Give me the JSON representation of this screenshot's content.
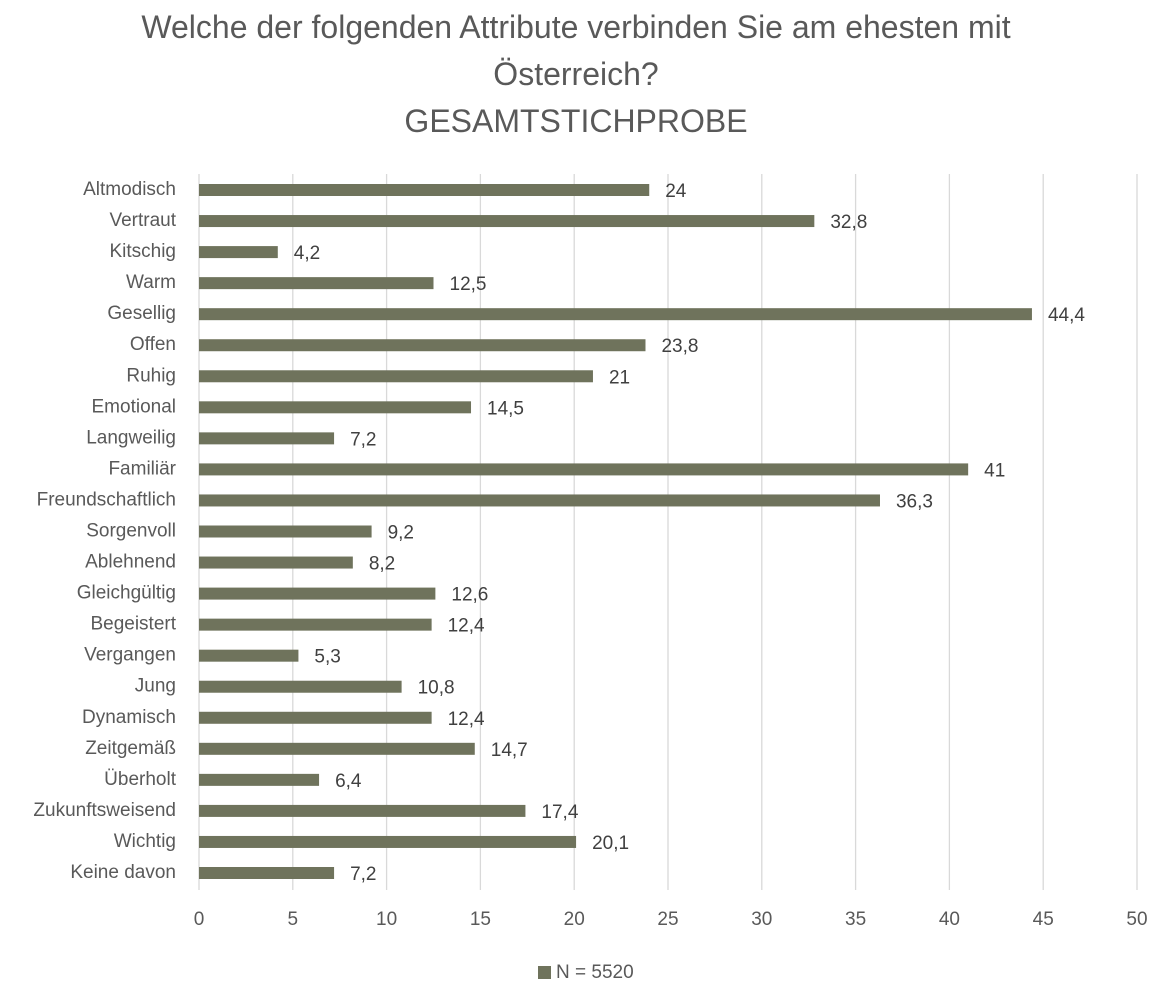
{
  "chart_data": {
    "type": "barh",
    "title": "Welche der folgenden Attribute verbinden Sie am ehesten mit Österreich?",
    "subtitle": "GESAMTSTICHPROBE",
    "categories": [
      "Altmodisch",
      "Vertraut",
      "Kitschig",
      "Warm",
      "Gesellig",
      "Offen",
      "Ruhig",
      "Emotional",
      "Langweilig",
      "Familiär",
      "Freundschaftlich",
      "Sorgenvoll",
      "Ablehnend",
      "Gleichgültig",
      "Begeistert",
      "Vergangen",
      "Jung",
      "Dynamisch",
      "Zeitgemäß",
      "Überholt",
      "Zukunftsweisend",
      "Wichtig",
      "Keine davon"
    ],
    "series": [
      {
        "name": "N = 5520",
        "color": "#6f735c",
        "values": [
          24,
          32.8,
          4.2,
          12.5,
          44.4,
          23.8,
          21,
          14.5,
          7.2,
          41,
          36.3,
          9.2,
          8.2,
          12.6,
          12.4,
          5.3,
          10.8,
          12.4,
          14.7,
          6.4,
          17.4,
          20.1,
          7.2
        ],
        "value_labels": [
          "24",
          "32,8",
          "4,2",
          "12,5",
          "44,4",
          "23,8",
          "21",
          "14,5",
          "7,2",
          "41",
          "36,3",
          "9,2",
          "8,2",
          "12,6",
          "12,4",
          "5,3",
          "10,8",
          "12,4",
          "14,7",
          "6,4",
          "17,4",
          "20,1",
          "7,2"
        ]
      }
    ],
    "xlim": [
      0,
      50
    ],
    "xticks": [
      0,
      5,
      10,
      15,
      20,
      25,
      30,
      35,
      40,
      45,
      50
    ],
    "grid": true,
    "legend": "bottom"
  }
}
